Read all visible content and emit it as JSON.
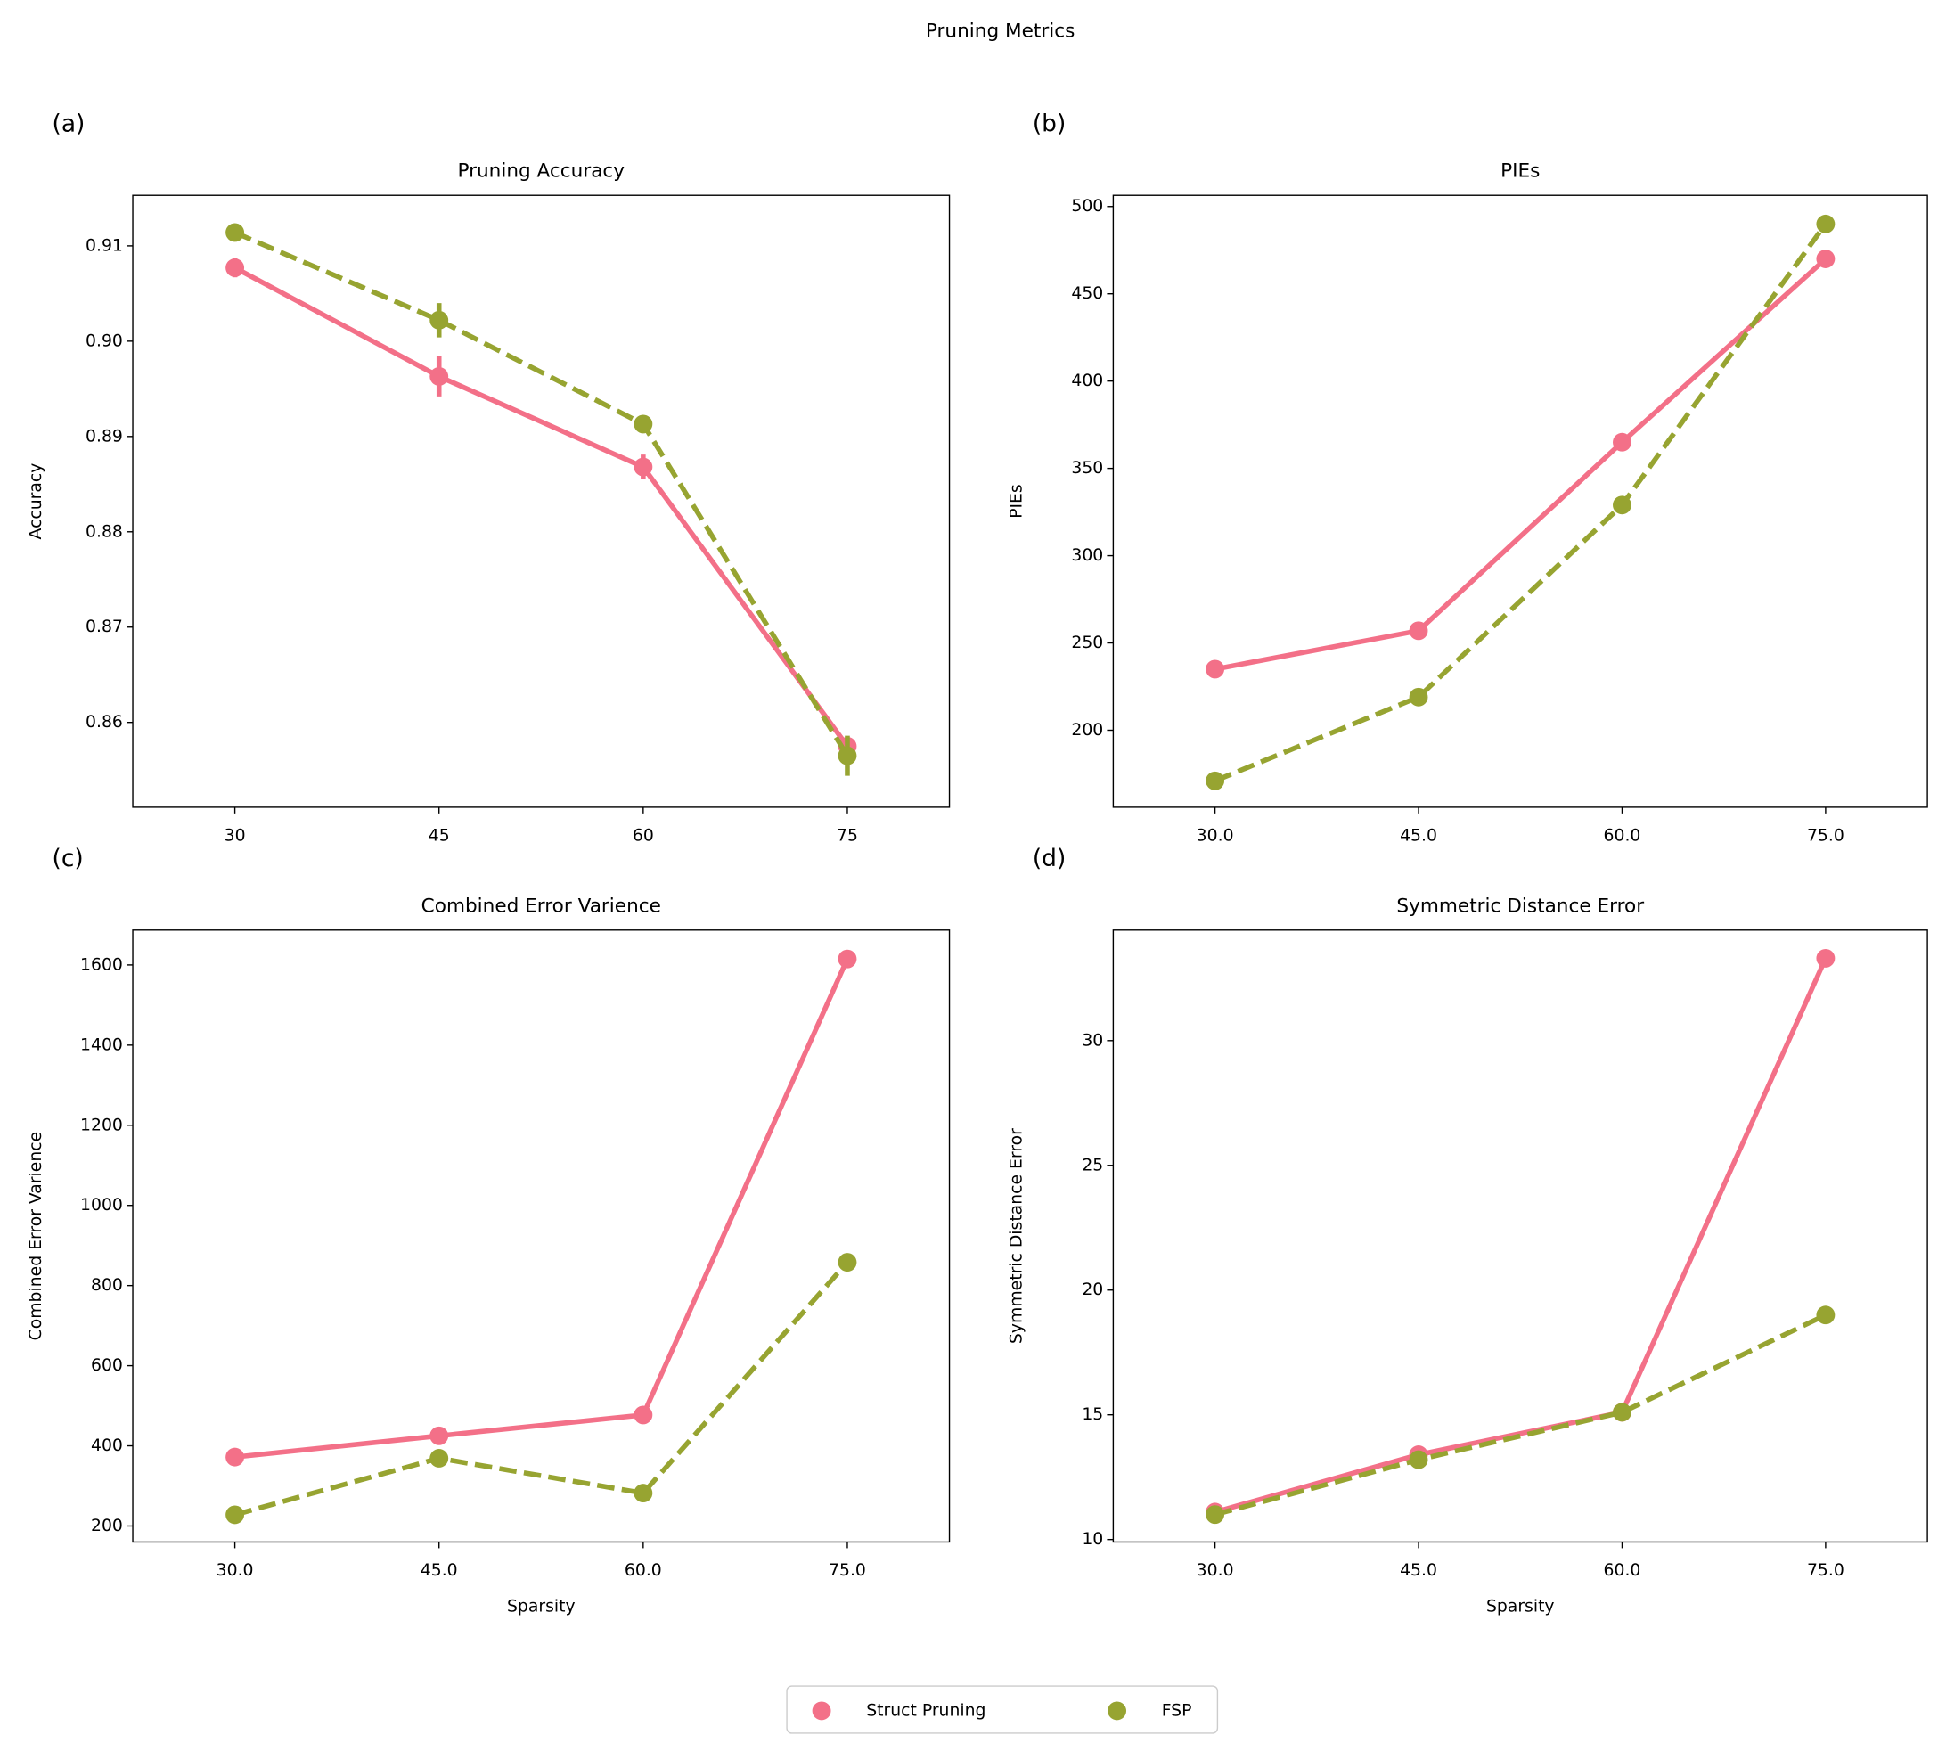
{
  "title": "Pruning Metrics",
  "chart_data": [
    {
      "type": "line",
      "panel_label": "(a)",
      "title": "Pruning Accuracy",
      "y_label": "Accuracy",
      "categories": [
        "30",
        "45",
        "60",
        "75"
      ],
      "ylim": [
        0.8511,
        0.9153
      ],
      "yticks": [
        0.86,
        0.87,
        0.88,
        0.89,
        {
          "value": 0.9,
          "label": "0.90"
        },
        0.91
      ],
      "series": [
        {
          "name": "Struct Pruning",
          "color": "#f37088",
          "linestyle": "solid",
          "values": [
            0.9077,
            0.8963,
            0.8868,
            0.8575
          ],
          "errors": [
            0.001,
            0.0021,
            0.0013,
            0.0005
          ]
        },
        {
          "name": "FSP",
          "color": "#97a431",
          "linestyle": "dashed",
          "values": [
            0.9114,
            0.9022,
            0.8913,
            0.8565
          ],
          "errors": [
            0.0008,
            0.0018,
            0.0005,
            0.0021
          ]
        }
      ]
    },
    {
      "type": "line",
      "panel_label": "(b)",
      "title": "PIEs",
      "y_label": "PIEs",
      "categories": [
        "30.0",
        "45.0",
        "60.0",
        "75.0"
      ],
      "ylim": [
        155.9,
        506.4
      ],
      "yticks": [
        200,
        250,
        300,
        350,
        400,
        450,
        500
      ],
      "series": [
        {
          "name": "Struct Pruning",
          "color": "#f37088",
          "linestyle": "solid",
          "values": [
            235,
            257,
            365,
            470
          ]
        },
        {
          "name": "FSP",
          "color": "#97a431",
          "linestyle": "dashed",
          "values": [
            171,
            219,
            329,
            490
          ]
        }
      ]
    },
    {
      "type": "line",
      "panel_label": "(c)",
      "title": "Combined Error Varience",
      "y_label": "Combined Error Varience",
      "x_label": "Sparsity",
      "categories": [
        "30.0",
        "45.0",
        "60.0",
        "75.0"
      ],
      "ylim": [
        160,
        1687
      ],
      "yticks": [
        200,
        400,
        600,
        800,
        1000,
        1200,
        1400,
        1600
      ],
      "series": [
        {
          "name": "Struct Pruning",
          "color": "#f37088",
          "linestyle": "solid",
          "values": [
            372,
            425,
            477,
            1615
          ]
        },
        {
          "name": "FSP",
          "color": "#97a431",
          "linestyle": "dashed",
          "values": [
            228,
            369,
            282,
            858
          ]
        }
      ]
    },
    {
      "type": "line",
      "panel_label": "(d)",
      "title": "Symmetric Distance Error",
      "y_label": "Symmetric Distance Error",
      "x_label": "Sparsity",
      "categories": [
        "30.0",
        "45.0",
        "60.0",
        "75.0"
      ],
      "ylim": [
        9.9,
        34.43
      ],
      "yticks": [
        10,
        15,
        20,
        25,
        30
      ],
      "series": [
        {
          "name": "Struct Pruning",
          "color": "#f37088",
          "linestyle": "solid",
          "values": [
            11.1,
            13.4,
            15.1,
            33.3
          ]
        },
        {
          "name": "FSP",
          "color": "#97a431",
          "linestyle": "dashed",
          "values": [
            11.0,
            13.2,
            15.1,
            19.0
          ]
        }
      ]
    }
  ]
}
